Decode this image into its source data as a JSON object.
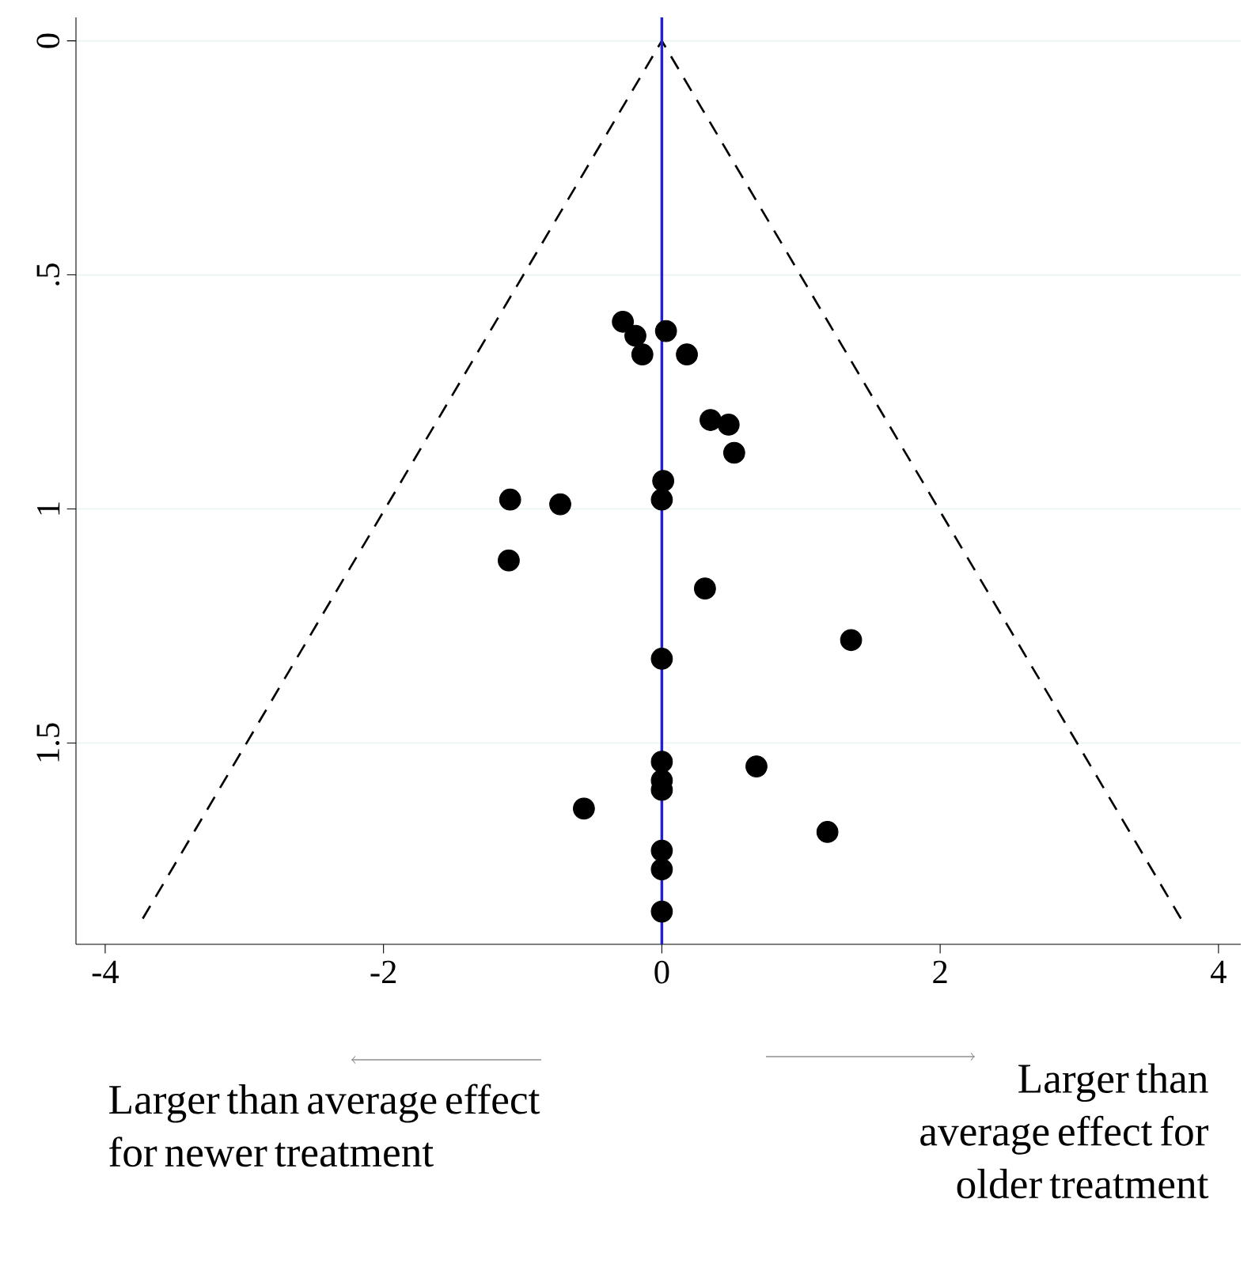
{
  "chart_data": {
    "type": "scatter",
    "xlim": [
      -4.21,
      4.16
    ],
    "ylim": [
      1.93,
      -0.05
    ],
    "xticks": [
      -4,
      -2,
      0,
      2,
      4
    ],
    "yticks": [
      0,
      {
        "value": 0.5,
        "label": ".5"
      },
      1,
      1.5
    ],
    "grid": "y",
    "series": [
      {
        "color": "#000000",
        "marker": "circle",
        "x": [
          -0.28,
          -0.19,
          0.03,
          -0.14,
          0.18,
          0.35,
          0.48,
          0.52,
          0.01,
          0,
          -1.09,
          -0.73,
          -1.1,
          0.31,
          1.36,
          0,
          0,
          0,
          0,
          0.68,
          -0.56,
          1.19,
          0,
          0,
          0
        ],
        "values": [
          0.6,
          0.63,
          0.62,
          0.67,
          0.67,
          0.81,
          0.82,
          0.88,
          0.94,
          0.98,
          0.98,
          0.99,
          1.11,
          1.17,
          1.28,
          1.32,
          1.54,
          1.58,
          1.6,
          1.55,
          1.64,
          1.69,
          1.73,
          1.77,
          1.86
        ]
      },
      {
        "type": "line",
        "color": "#000000",
        "line_style": "dashed",
        "marker": "none",
        "x": [
          -3.73,
          0,
          3.73
        ],
        "values": [
          1.875,
          0,
          1.875
        ]
      }
    ],
    "ref_lines": [
      {
        "axis": "x",
        "value": 0,
        "color": "#2222cc"
      }
    ],
    "annotations": [
      "Larger than average effect for newer treatment",
      "Larger than average effect for older treatment"
    ]
  }
}
